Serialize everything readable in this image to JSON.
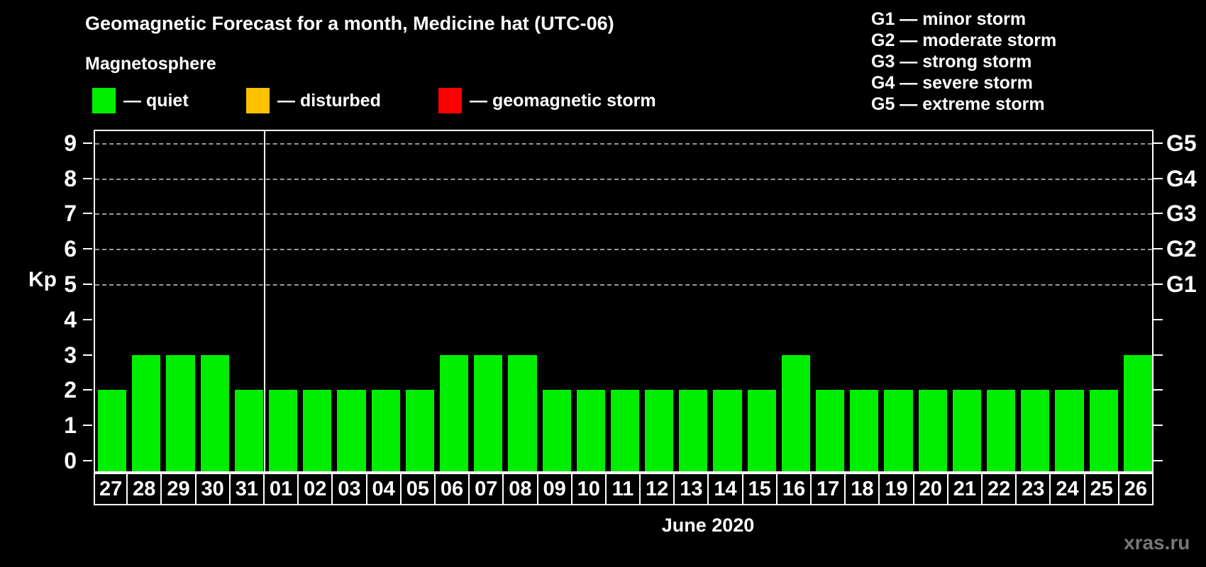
{
  "title": "Geomagnetic Forecast for a month, Medicine hat (UTC-06)",
  "watermark": "xras.ru",
  "legend": {
    "heading": "Magnetosphere",
    "items": [
      {
        "name": "quiet",
        "color": "#00ee00",
        "label": "— quiet"
      },
      {
        "name": "disturbed",
        "color": "#ffc000",
        "label": "— disturbed"
      },
      {
        "name": "storm",
        "color": "#ff0000",
        "label": "— geomagnetic storm"
      }
    ]
  },
  "g_legend": [
    "G1 — minor storm",
    "G2 — moderate storm",
    "G3 — strong storm",
    "G4 — severe storm",
    "G5 — extreme storm"
  ],
  "chart_data": {
    "type": "bar",
    "title": "Geomagnetic Forecast for a month, Medicine hat (UTC-06)",
    "ylabel": "Kp",
    "xlabel": "June 2020",
    "ylim": [
      0,
      9
    ],
    "yticks": [
      0,
      1,
      2,
      3,
      4,
      5,
      6,
      7,
      8,
      9
    ],
    "gridlines": [
      5,
      6,
      7,
      8,
      9
    ],
    "right_axis_labels": [
      {
        "value": 5,
        "label": "G1"
      },
      {
        "value": 6,
        "label": "G2"
      },
      {
        "value": 7,
        "label": "G3"
      },
      {
        "value": 8,
        "label": "G4"
      },
      {
        "value": 9,
        "label": "G5"
      }
    ],
    "categories": [
      "27",
      "28",
      "29",
      "30",
      "31",
      "01",
      "02",
      "03",
      "04",
      "05",
      "06",
      "07",
      "08",
      "09",
      "10",
      "11",
      "12",
      "13",
      "14",
      "15",
      "16",
      "17",
      "18",
      "19",
      "20",
      "21",
      "22",
      "23",
      "24",
      "25",
      "26"
    ],
    "values": [
      2,
      3,
      3,
      3,
      2,
      2,
      2,
      2,
      2,
      2,
      3,
      3,
      3,
      2,
      2,
      2,
      2,
      2,
      2,
      2,
      3,
      2,
      2,
      2,
      2,
      2,
      2,
      2,
      2,
      2,
      3
    ],
    "bar_color": "#00ee00",
    "month_separator_after_index": 4,
    "legend_position": "top-left",
    "grid": "dashed, levels 5-9 only"
  }
}
